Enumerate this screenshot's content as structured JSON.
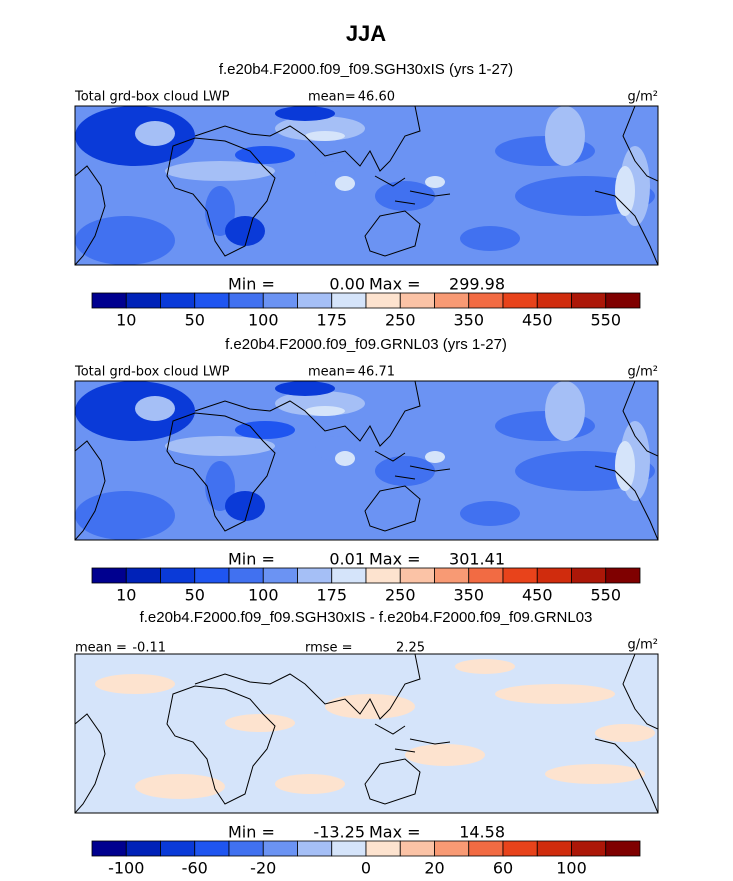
{
  "header": {
    "title": "JJA"
  },
  "panels": [
    {
      "subtitle": "f.e20b4.F2000.f09_f09.SGH30xIS (yrs 1-27)",
      "field": "Total grd-box cloud LWP",
      "stat1_label": "mean=",
      "stat1_value": "46.60",
      "units": "g/m²",
      "min_label": "Min =",
      "min_value": "0.00",
      "max_label": "Max =",
      "max_value": "299.98",
      "colorbar_labels": [
        "10",
        "50",
        "100",
        "175",
        "250",
        "350",
        "450",
        "550"
      ]
    },
    {
      "subtitle": "f.e20b4.F2000.f09_f09.GRNL03 (yrs 1-27)",
      "field": "Total grd-box cloud LWP",
      "stat1_label": "mean=",
      "stat1_value": "46.71",
      "units": "g/m²",
      "min_label": "Min =",
      "min_value": "0.01",
      "max_label": "Max =",
      "max_value": "301.41",
      "colorbar_labels": [
        "10",
        "50",
        "100",
        "175",
        "250",
        "350",
        "450",
        "550"
      ]
    },
    {
      "subtitle": "f.e20b4.F2000.f09_f09.SGH30xIS - f.e20b4.F2000.f09_f09.GRNL03",
      "stat1_label": "mean =",
      "stat1_value": "-0.11",
      "stat2_label": "rmse =",
      "stat2_value": "2.25",
      "units": "g/m²",
      "min_label": "Min =",
      "min_value": "-13.25",
      "max_label": "Max =",
      "max_value": "14.58",
      "colorbar_labels": [
        "-100",
        "-60",
        "-20",
        "0",
        "20",
        "60",
        "100"
      ]
    }
  ]
}
